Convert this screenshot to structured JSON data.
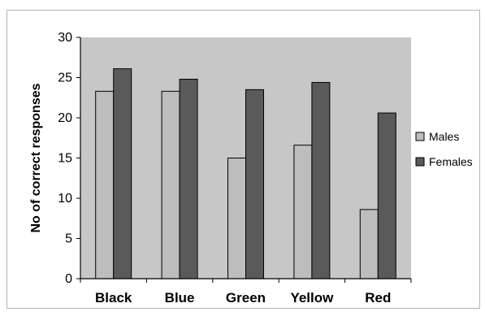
{
  "chart_data": {
    "type": "bar",
    "title": "",
    "xlabel": "",
    "ylabel": "No of correct responses",
    "ylim": [
      0,
      30
    ],
    "yticks": [
      0,
      5,
      10,
      15,
      20,
      25,
      30
    ],
    "categories": [
      "Black",
      "Blue",
      "Green",
      "Yellow",
      "Red"
    ],
    "series": [
      {
        "name": "Males",
        "values": [
          23.3,
          23.3,
          15.0,
          16.6,
          8.6
        ],
        "color": "#bdbdbd"
      },
      {
        "name": "Females",
        "values": [
          26.1,
          24.8,
          23.5,
          24.4,
          20.6
        ],
        "color": "#5a5a5a"
      }
    ],
    "grid": false,
    "legend_position": "right",
    "plot_background": "#c7c7c7"
  }
}
